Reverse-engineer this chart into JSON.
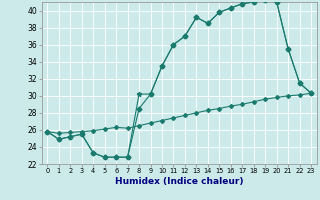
{
  "title": "",
  "xlabel": "Humidex (Indice chaleur)",
  "bg_color": "#cceaea",
  "grid_color": "#ffffff",
  "line_color": "#1a7a6e",
  "xlim": [
    -0.5,
    23.5
  ],
  "ylim": [
    22,
    41
  ],
  "xticks": [
    0,
    1,
    2,
    3,
    4,
    5,
    6,
    7,
    8,
    9,
    10,
    11,
    12,
    13,
    14,
    15,
    16,
    17,
    18,
    19,
    20,
    21,
    22,
    23
  ],
  "yticks": [
    22,
    24,
    26,
    28,
    30,
    32,
    34,
    36,
    38,
    40
  ],
  "curve1_x": [
    0,
    1,
    2,
    3,
    4,
    5,
    6,
    7,
    8,
    9,
    10,
    11,
    12,
    13,
    14,
    15,
    16,
    17,
    18,
    19,
    20,
    21,
    22,
    23
  ],
  "curve1_y": [
    25.8,
    24.9,
    25.2,
    25.5,
    23.3,
    22.8,
    22.8,
    22.8,
    30.2,
    30.2,
    33.5,
    36.0,
    37.0,
    39.2,
    38.5,
    39.8,
    40.3,
    40.8,
    41.0,
    41.2,
    41.0,
    35.5,
    31.5,
    30.3
  ],
  "curve2_x": [
    0,
    1,
    2,
    3,
    4,
    5,
    6,
    7,
    8,
    9,
    10,
    11,
    12,
    13,
    14,
    15,
    16,
    17,
    18,
    19,
    20,
    21,
    22,
    23
  ],
  "curve2_y": [
    25.8,
    24.9,
    25.2,
    25.5,
    23.3,
    22.8,
    22.8,
    22.8,
    28.5,
    30.2,
    33.5,
    36.0,
    37.0,
    39.2,
    38.5,
    39.8,
    40.3,
    40.8,
    41.0,
    41.2,
    41.0,
    35.5,
    31.5,
    30.3
  ],
  "curve3_x": [
    0,
    1,
    2,
    3,
    4,
    5,
    6,
    7,
    8,
    9,
    10,
    11,
    12,
    13,
    14,
    15,
    16,
    17,
    18,
    19,
    20,
    21,
    22,
    23
  ],
  "curve3_y": [
    25.8,
    25.6,
    25.7,
    25.8,
    25.9,
    26.1,
    26.3,
    26.2,
    26.5,
    26.8,
    27.1,
    27.4,
    27.7,
    28.0,
    28.3,
    28.5,
    28.8,
    29.0,
    29.3,
    29.6,
    29.8,
    30.0,
    30.1,
    30.3
  ]
}
